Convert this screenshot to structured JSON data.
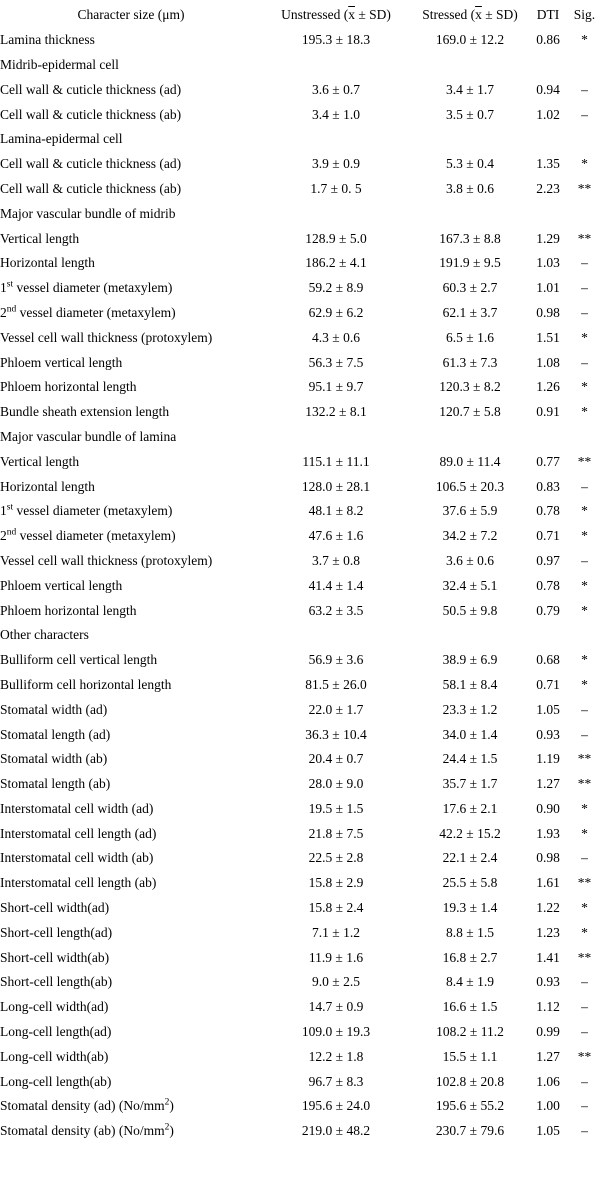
{
  "page": {
    "background": "#ffffff",
    "text_color": "#000000"
  },
  "table": {
    "header": {
      "character": "Character size (μm)",
      "unstressed_pre": "Unstressed (",
      "stressed_pre": "Stressed (",
      "xbar": "x",
      "sd_suffix": " ± SD)",
      "dti": "DTI",
      "sig": "Sig."
    },
    "rows": [
      {
        "type": "data",
        "label_pre": "Lamina thickness",
        "label_sup": "",
        "label_post": "",
        "unstressed": "195.3 ± 18.3",
        "stressed": "169.0 ± 12.2",
        "dti": "0.86",
        "sig": "*"
      },
      {
        "type": "section",
        "label_pre": "Midrib-epidermal cell",
        "label_sup": "",
        "label_post": "",
        "unstressed": "",
        "stressed": "",
        "dti": "",
        "sig": ""
      },
      {
        "type": "data",
        "label_pre": "Cell wall & cuticle thickness (ad)",
        "label_sup": "",
        "label_post": "",
        "unstressed": "3.6 ± 0.7",
        "stressed": "3.4 ± 1.7",
        "dti": "0.94",
        "sig": "–"
      },
      {
        "type": "data",
        "label_pre": "Cell wall & cuticle thickness (ab)",
        "label_sup": "",
        "label_post": "",
        "unstressed": "3.4 ± 1.0",
        "stressed": "3.5 ± 0.7",
        "dti": "1.02",
        "sig": "–"
      },
      {
        "type": "section",
        "label_pre": "Lamina-epidermal cell",
        "label_sup": "",
        "label_post": "",
        "unstressed": "",
        "stressed": "",
        "dti": "",
        "sig": ""
      },
      {
        "type": "data",
        "label_pre": "Cell wall & cuticle thickness (ad)",
        "label_sup": "",
        "label_post": "",
        "unstressed": "3.9 ± 0.9",
        "stressed": "5.3 ± 0.4",
        "dti": "1.35",
        "sig": "*"
      },
      {
        "type": "data",
        "label_pre": "Cell wall & cuticle thickness (ab)",
        "label_sup": "",
        "label_post": "",
        "unstressed": "1.7 ± 0. 5",
        "stressed": "3.8 ± 0.6",
        "dti": "2.23",
        "sig": "**"
      },
      {
        "type": "section",
        "label_pre": "Major vascular bundle of midrib",
        "label_sup": "",
        "label_post": "",
        "unstressed": "",
        "stressed": "",
        "dti": "",
        "sig": ""
      },
      {
        "type": "data",
        "label_pre": "Vertical length",
        "label_sup": "",
        "label_post": "",
        "unstressed": "128.9 ± 5.0",
        "stressed": "167.3 ± 8.8",
        "dti": "1.29",
        "sig": "**"
      },
      {
        "type": "data",
        "label_pre": "Horizontal length",
        "label_sup": "",
        "label_post": "",
        "unstressed": "186.2 ± 4.1",
        "stressed": "191.9 ± 9.5",
        "dti": "1.03",
        "sig": "–"
      },
      {
        "type": "data",
        "label_pre": "1",
        "label_sup": "st",
        "label_post": " vessel diameter (metaxylem)",
        "unstressed": "59.2 ± 8.9",
        "stressed": "60.3 ± 2.7",
        "dti": "1.01",
        "sig": "–"
      },
      {
        "type": "data",
        "label_pre": "2",
        "label_sup": "nd",
        "label_post": " vessel diameter (metaxylem)",
        "unstressed": "62.9 ± 6.2",
        "stressed": "62.1 ± 3.7",
        "dti": "0.98",
        "sig": "–"
      },
      {
        "type": "data",
        "label_pre": "Vessel cell wall thickness (protoxylem)",
        "label_sup": "",
        "label_post": "",
        "unstressed": "4.3 ± 0.6",
        "stressed": "6.5 ± 1.6",
        "dti": "1.51",
        "sig": "*"
      },
      {
        "type": "data",
        "label_pre": "Phloem vertical length",
        "label_sup": "",
        "label_post": "",
        "unstressed": "56.3 ± 7.5",
        "stressed": "61.3 ± 7.3",
        "dti": "1.08",
        "sig": "–"
      },
      {
        "type": "data",
        "label_pre": "Phloem horizontal length",
        "label_sup": "",
        "label_post": "",
        "unstressed": "95.1 ± 9.7",
        "stressed": "120.3 ± 8.2",
        "dti": "1.26",
        "sig": "*"
      },
      {
        "type": "data",
        "label_pre": "Bundle sheath extension length",
        "label_sup": "",
        "label_post": "",
        "unstressed": "132.2 ± 8.1",
        "stressed": "120.7 ± 5.8",
        "dti": "0.91",
        "sig": "*"
      },
      {
        "type": "section",
        "label_pre": "Major vascular bundle of lamina",
        "label_sup": "",
        "label_post": "",
        "unstressed": "",
        "stressed": "",
        "dti": "",
        "sig": ""
      },
      {
        "type": "data",
        "label_pre": "Vertical length",
        "label_sup": "",
        "label_post": "",
        "unstressed": "115.1 ± 11.1",
        "stressed": "89.0 ± 11.4",
        "dti": "0.77",
        "sig": "**"
      },
      {
        "type": "data",
        "label_pre": "Horizontal length",
        "label_sup": "",
        "label_post": "",
        "unstressed": "128.0 ± 28.1",
        "stressed": "106.5 ± 20.3",
        "dti": "0.83",
        "sig": "–"
      },
      {
        "type": "data",
        "label_pre": "1",
        "label_sup": "st",
        "label_post": " vessel diameter (metaxylem)",
        "unstressed": "48.1 ± 8.2",
        "stressed": "37.6 ± 5.9",
        "dti": "0.78",
        "sig": "*"
      },
      {
        "type": "data",
        "label_pre": "2",
        "label_sup": "nd",
        "label_post": " vessel diameter (metaxylem)",
        "unstressed": "47.6 ± 1.6",
        "stressed": "34.2 ± 7.2",
        "dti": "0.71",
        "sig": "*"
      },
      {
        "type": "data",
        "label_pre": "Vessel cell wall thickness (protoxylem)",
        "label_sup": "",
        "label_post": "",
        "unstressed": "3.7 ± 0.8",
        "stressed": "3.6 ± 0.6",
        "dti": "0.97",
        "sig": "–"
      },
      {
        "type": "data",
        "label_pre": "Phloem vertical length",
        "label_sup": "",
        "label_post": "",
        "unstressed": "41.4 ± 1.4",
        "stressed": "32.4 ± 5.1",
        "dti": "0.78",
        "sig": "*"
      },
      {
        "type": "data",
        "label_pre": "Phloem horizontal length",
        "label_sup": "",
        "label_post": "",
        "unstressed": "63.2 ± 3.5",
        "stressed": "50.5 ± 9.8",
        "dti": "0.79",
        "sig": "*"
      },
      {
        "type": "section",
        "label_pre": "Other characters",
        "label_sup": "",
        "label_post": "",
        "unstressed": "",
        "stressed": "",
        "dti": "",
        "sig": ""
      },
      {
        "type": "data",
        "label_pre": "Bulliform cell vertical length",
        "label_sup": "",
        "label_post": "",
        "unstressed": "56.9 ± 3.6",
        "stressed": "38.9 ± 6.9",
        "dti": "0.68",
        "sig": "*"
      },
      {
        "type": "data",
        "label_pre": "Bulliform cell horizontal length",
        "label_sup": "",
        "label_post": "",
        "unstressed": "81.5 ± 26.0",
        "stressed": "58.1 ± 8.4",
        "dti": "0.71",
        "sig": "*"
      },
      {
        "type": "data",
        "label_pre": "Stomatal width (ad)",
        "label_sup": "",
        "label_post": "",
        "unstressed": "22.0 ± 1.7",
        "stressed": "23.3 ± 1.2",
        "dti": "1.05",
        "sig": "–"
      },
      {
        "type": "data",
        "label_pre": "Stomatal length (ad)",
        "label_sup": "",
        "label_post": "",
        "unstressed": "36.3 ± 10.4",
        "stressed": "34.0 ± 1.4",
        "dti": "0.93",
        "sig": "–"
      },
      {
        "type": "data",
        "label_pre": "Stomatal width (ab)",
        "label_sup": "",
        "label_post": "",
        "unstressed": "20.4 ± 0.7",
        "stressed": "24.4 ± 1.5",
        "dti": "1.19",
        "sig": "**"
      },
      {
        "type": "data",
        "label_pre": "Stomatal length (ab)",
        "label_sup": "",
        "label_post": "",
        "unstressed": "28.0 ± 9.0",
        "stressed": "35.7 ± 1.7",
        "dti": "1.27",
        "sig": "**"
      },
      {
        "type": "data",
        "label_pre": "Interstomatal cell width (ad)",
        "label_sup": "",
        "label_post": "",
        "unstressed": "19.5 ± 1.5",
        "stressed": "17.6 ± 2.1",
        "dti": "0.90",
        "sig": "*"
      },
      {
        "type": "data",
        "label_pre": "Interstomatal cell length (ad)",
        "label_sup": "",
        "label_post": "",
        "unstressed": "21.8 ± 7.5",
        "stressed": "42.2 ± 15.2",
        "dti": "1.93",
        "sig": "*"
      },
      {
        "type": "data",
        "label_pre": "Interstomatal cell width (ab)",
        "label_sup": "",
        "label_post": "",
        "unstressed": "22.5 ± 2.8",
        "stressed": "22.1 ± 2.4",
        "dti": "0.98",
        "sig": "–"
      },
      {
        "type": "data",
        "label_pre": "Interstomatal cell length (ab)",
        "label_sup": "",
        "label_post": "",
        "unstressed": "15.8 ± 2.9",
        "stressed": "25.5 ± 5.8",
        "dti": "1.61",
        "sig": "**"
      },
      {
        "type": "data",
        "label_pre": "Short-cell width(ad)",
        "label_sup": "",
        "label_post": "",
        "unstressed": "15.8 ± 2.4",
        "stressed": "19.3 ± 1.4",
        "dti": "1.22",
        "sig": "*"
      },
      {
        "type": "data",
        "label_pre": "Short-cell length(ad)",
        "label_sup": "",
        "label_post": "",
        "unstressed": "7.1 ± 1.2",
        "stressed": "8.8 ± 1.5",
        "dti": "1.23",
        "sig": "*"
      },
      {
        "type": "data",
        "label_pre": "Short-cell width(ab)",
        "label_sup": "",
        "label_post": "",
        "unstressed": "11.9 ± 1.6",
        "stressed": "16.8 ± 2.7",
        "dti": "1.41",
        "sig": "**"
      },
      {
        "type": "data",
        "label_pre": "Short-cell length(ab)",
        "label_sup": "",
        "label_post": "",
        "unstressed": "9.0 ± 2.5",
        "stressed": "8.4 ± 1.9",
        "dti": "0.93",
        "sig": "–"
      },
      {
        "type": "data",
        "label_pre": "Long-cell width(ad)",
        "label_sup": "",
        "label_post": "",
        "unstressed": "14.7 ± 0.9",
        "stressed": "16.6 ± 1.5",
        "dti": "1.12",
        "sig": "–"
      },
      {
        "type": "data",
        "label_pre": "Long-cell length(ad)",
        "label_sup": "",
        "label_post": "",
        "unstressed": "109.0 ± 19.3",
        "stressed": "108.2 ± 11.2",
        "dti": "0.99",
        "sig": "–"
      },
      {
        "type": "data",
        "label_pre": "Long-cell width(ab)",
        "label_sup": "",
        "label_post": "",
        "unstressed": "12.2 ± 1.8",
        "stressed": "15.5 ± 1.1",
        "dti": "1.27",
        "sig": "**"
      },
      {
        "type": "data",
        "label_pre": "Long-cell length(ab)",
        "label_sup": "",
        "label_post": "",
        "unstressed": "96.7 ± 8.3",
        "stressed": "102.8 ± 20.8",
        "dti": "1.06",
        "sig": "–"
      },
      {
        "type": "data",
        "label_pre": "Stomatal density (ad) (No/mm",
        "label_sup": "2",
        "label_post": ")",
        "unstressed": "195.6 ± 24.0",
        "stressed": "195.6 ± 55.2",
        "dti": "1.00",
        "sig": "–"
      },
      {
        "type": "data",
        "label_pre": "Stomatal density (ab) (No/mm",
        "label_sup": "2",
        "label_post": ")",
        "unstressed": "219.0 ± 48.2",
        "stressed": "230.7 ± 79.6",
        "dti": "1.05",
        "sig": "–"
      }
    ]
  }
}
